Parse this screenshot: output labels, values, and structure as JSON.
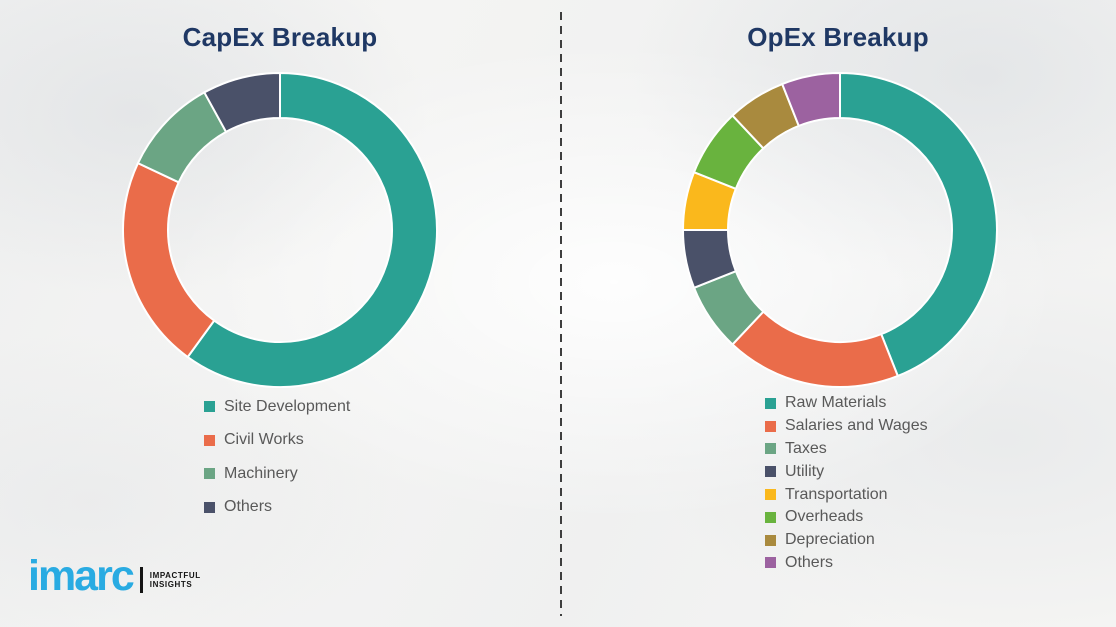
{
  "background_color": "#f4f4f3",
  "title_color": "#1f3864",
  "legend_text_color": "#595959",
  "divider_color": "#3e3e3e",
  "chart_data": [
    {
      "type": "pie",
      "subtype": "donut",
      "title": "CapEx Breakup",
      "units": "percent (estimated from arc angles, no labels shown)",
      "labels": [
        "Site Development",
        "Civil Works",
        "Machinery",
        "Others"
      ],
      "values": [
        60,
        22,
        10,
        8
      ],
      "colors": [
        "#2aa193",
        "#ea6c4a",
        "#6ba584",
        "#4a5169"
      ],
      "start_angle_deg": 0,
      "direction": "clockwise",
      "legend_position": "below-chart"
    },
    {
      "type": "pie",
      "subtype": "donut",
      "title": "OpEx Breakup",
      "units": "percent (estimated from arc angles, no labels shown)",
      "labels": [
        "Raw Materials",
        "Salaries and Wages",
        "Taxes",
        "Utility",
        "Transportation",
        "Overheads",
        "Depreciation",
        "Others"
      ],
      "values": [
        44,
        18,
        7,
        6,
        6,
        7,
        6,
        6
      ],
      "colors": [
        "#2aa193",
        "#ea6c4a",
        "#6ba584",
        "#4a5169",
        "#fab81c",
        "#69b33e",
        "#a98a3e",
        "#9c62a0"
      ],
      "start_angle_deg": 0,
      "direction": "clockwise",
      "legend_position": "below-chart"
    }
  ],
  "logo": {
    "brand": "imarc",
    "tagline_line1": "IMPACTFUL",
    "tagline_line2": "INSIGHTS",
    "brand_color": "#29abe2",
    "tagline_color": "#141414"
  }
}
